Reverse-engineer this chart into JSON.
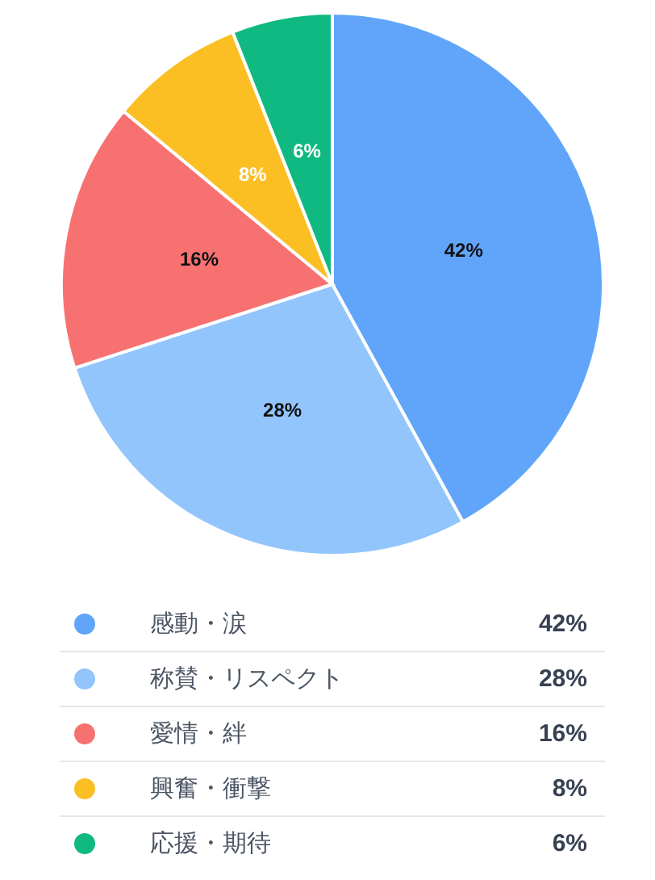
{
  "chart_data": {
    "type": "pie",
    "categories": [
      "感動・涙",
      "称賛・リスペクト",
      "愛情・絆",
      "興奮・衝撃",
      "応援・期待"
    ],
    "values": [
      42,
      28,
      16,
      8,
      6
    ],
    "colors": [
      "#60a5fa",
      "#93c5fd",
      "#f87171",
      "#fbbf24",
      "#10b981"
    ],
    "value_labels": [
      "42%",
      "28%",
      "16%",
      "8%",
      "6%"
    ],
    "legend": "bottom"
  }
}
